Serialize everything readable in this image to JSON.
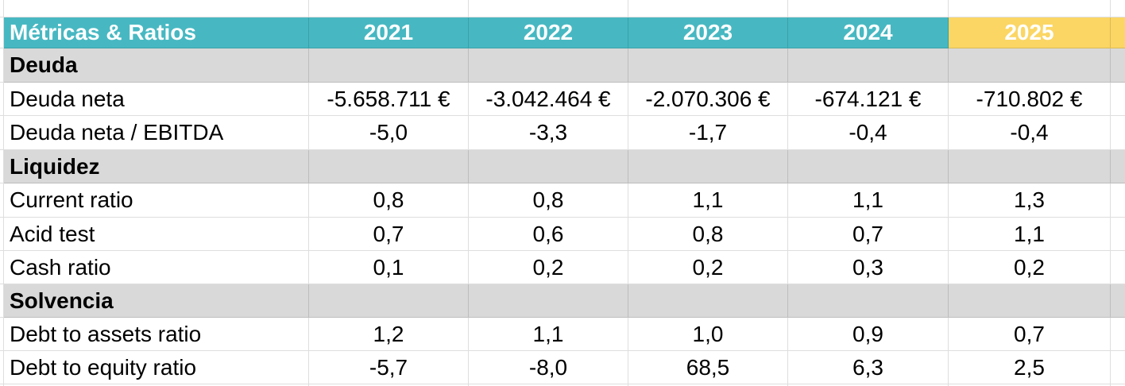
{
  "table": {
    "header_label": "Métricas & Ratios",
    "years": [
      "2021",
      "2022",
      "2023",
      "2024",
      "2025"
    ],
    "highlighted_year": "2025",
    "sections": [
      {
        "label": "Deuda",
        "rows": [
          {
            "label": "Deuda neta",
            "values": [
              "-5.658.711 €",
              "-3.042.464 €",
              "-2.070.306 €",
              "-674.121 €",
              "-710.802 €"
            ]
          },
          {
            "label": "Deuda neta / EBITDA",
            "values": [
              "-5,0",
              "-3,3",
              "-1,7",
              "-0,4",
              "-0,4"
            ]
          }
        ]
      },
      {
        "label": "Liquidez",
        "rows": [
          {
            "label": "Current ratio",
            "values": [
              "0,8",
              "0,8",
              "1,1",
              "1,1",
              "1,3"
            ]
          },
          {
            "label": "Acid test",
            "values": [
              "0,7",
              "0,6",
              "0,8",
              "0,7",
              "1,1"
            ]
          },
          {
            "label": "Cash ratio",
            "values": [
              "0,1",
              "0,2",
              "0,2",
              "0,3",
              "0,2"
            ]
          }
        ]
      },
      {
        "label": "Solvencia",
        "rows": [
          {
            "label": "Debt to assets ratio",
            "values": [
              "1,2",
              "1,1",
              "1,0",
              "0,9",
              "0,7"
            ]
          },
          {
            "label": "Debt to equity ratio",
            "values": [
              "-5,7",
              "-8,0",
              "68,5",
              "6,3",
              "2,5"
            ]
          }
        ]
      }
    ],
    "colors": {
      "header_teal": "#47b8c2",
      "highlight_yellow": "#fbd665",
      "section_gray": "#d9d9d9",
      "header_text": "#ffffff",
      "body_text": "#000000",
      "gridline": "rgba(0,0,0,0.13)"
    }
  }
}
